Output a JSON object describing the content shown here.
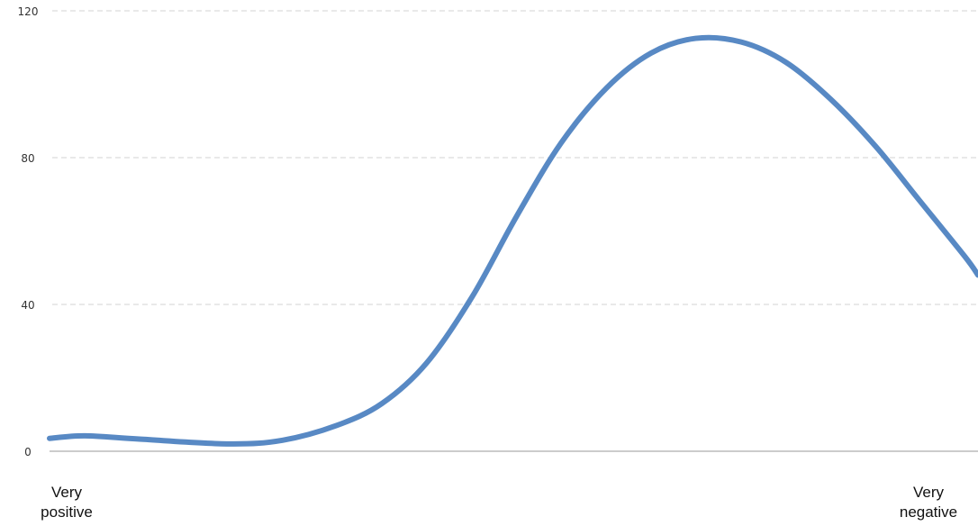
{
  "chart_data": {
    "type": "line",
    "x_labels": [
      {
        "text": [
          "Very",
          "positive"
        ]
      },
      {
        "text": [
          "Very",
          "negative"
        ]
      }
    ],
    "y_ticks": [
      0,
      40,
      80,
      120
    ],
    "ylim": [
      0,
      120
    ],
    "grid": true,
    "series": [
      {
        "color": "#5889c4",
        "points": [
          {
            "x": 0.0,
            "y": 3.5
          },
          {
            "x": 0.038,
            "y": 4.2
          },
          {
            "x": 0.097,
            "y": 3.3
          },
          {
            "x": 0.193,
            "y": 2.0
          },
          {
            "x": 0.251,
            "y": 3.0
          },
          {
            "x": 0.309,
            "y": 7.0
          },
          {
            "x": 0.358,
            "y": 13.0
          },
          {
            "x": 0.406,
            "y": 24.0
          },
          {
            "x": 0.455,
            "y": 42.0
          },
          {
            "x": 0.503,
            "y": 64.0
          },
          {
            "x": 0.551,
            "y": 84.0
          },
          {
            "x": 0.6,
            "y": 99.0
          },
          {
            "x": 0.648,
            "y": 108.5
          },
          {
            "x": 0.696,
            "y": 112.5
          },
          {
            "x": 0.745,
            "y": 111.5
          },
          {
            "x": 0.793,
            "y": 106.0
          },
          {
            "x": 0.841,
            "y": 96.0
          },
          {
            "x": 0.89,
            "y": 83.0
          },
          {
            "x": 0.938,
            "y": 68.0
          },
          {
            "x": 0.986,
            "y": 53.0
          },
          {
            "x": 1.0,
            "y": 48.0
          }
        ]
      }
    ]
  }
}
